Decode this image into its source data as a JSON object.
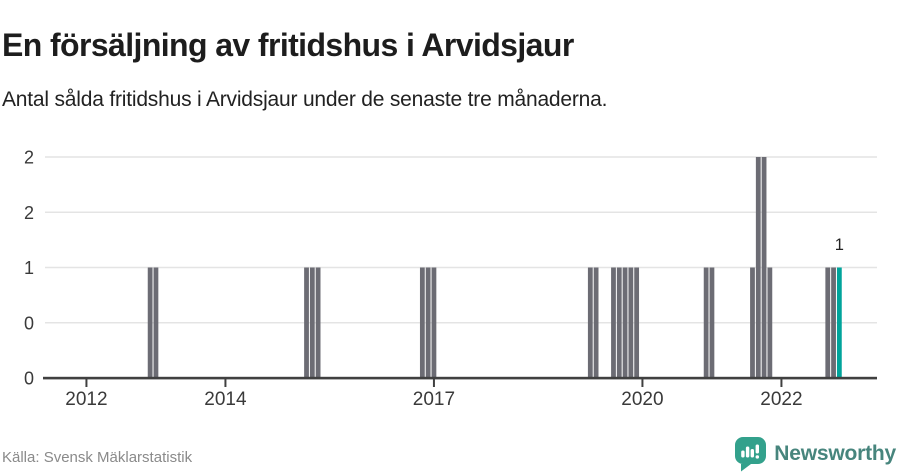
{
  "header": {
    "title": "En försäljning av fritidshus i Arvidsjaur",
    "subtitle": "Antal sålda fritidshus i Arvidsjaur under de senaste tre månaderna."
  },
  "footer": {
    "source": "Källa: Svensk Mäklarstatistik",
    "brand": "Newsworthy"
  },
  "colors": {
    "bar": "#6c6c74",
    "highlight": "#00a49b",
    "axis": "#404040",
    "grid": "#e4e4e4",
    "tick_label": "#3a3a3a",
    "annotation": "#222222",
    "brand_bubble": "#33a18c",
    "brand_text": "#47857d",
    "source_text": "#8a8a8a"
  },
  "chart_data": {
    "type": "bar",
    "title": "En försäljning av fritidshus i Arvidsjaur",
    "subtitle": "Antal sålda fritidshus i Arvidsjaur under de senaste tre månaderna.",
    "xlabel": "",
    "ylabel": "",
    "ylim": [
      0,
      2
    ],
    "grid": true,
    "x_domain": {
      "start": "2011-06",
      "end": "2023-05",
      "interval": "month"
    },
    "x_ticks": [
      "2012",
      "2014",
      "2017",
      "2020",
      "2022"
    ],
    "y_ticks": [
      {
        "value": 0,
        "label": "0"
      },
      {
        "value": 0.5,
        "label": "0"
      },
      {
        "value": 1,
        "label": "1"
      },
      {
        "value": 1.5,
        "label": "2"
      },
      {
        "value": 2,
        "label": "2"
      }
    ],
    "non_zero_months": [
      {
        "month": "2012-12",
        "value": 1
      },
      {
        "month": "2013-01",
        "value": 1
      },
      {
        "month": "2015-03",
        "value": 1
      },
      {
        "month": "2015-04",
        "value": 1
      },
      {
        "month": "2015-05",
        "value": 1
      },
      {
        "month": "2016-11",
        "value": 1
      },
      {
        "month": "2016-12",
        "value": 1
      },
      {
        "month": "2017-01",
        "value": 1
      },
      {
        "month": "2019-04",
        "value": 1
      },
      {
        "month": "2019-05",
        "value": 1
      },
      {
        "month": "2019-08",
        "value": 1
      },
      {
        "month": "2019-09",
        "value": 1
      },
      {
        "month": "2019-10",
        "value": 1
      },
      {
        "month": "2019-11",
        "value": 1
      },
      {
        "month": "2019-12",
        "value": 1
      },
      {
        "month": "2020-12",
        "value": 1
      },
      {
        "month": "2021-01",
        "value": 1
      },
      {
        "month": "2021-08",
        "value": 1
      },
      {
        "month": "2021-09",
        "value": 2
      },
      {
        "month": "2021-10",
        "value": 2
      },
      {
        "month": "2021-11",
        "value": 1
      },
      {
        "month": "2022-09",
        "value": 1
      },
      {
        "month": "2022-10",
        "value": 1
      },
      {
        "month": "2022-11",
        "value": 1
      }
    ],
    "highlight_month": "2022-11",
    "annotation": {
      "month": "2022-11",
      "label": "1"
    }
  }
}
